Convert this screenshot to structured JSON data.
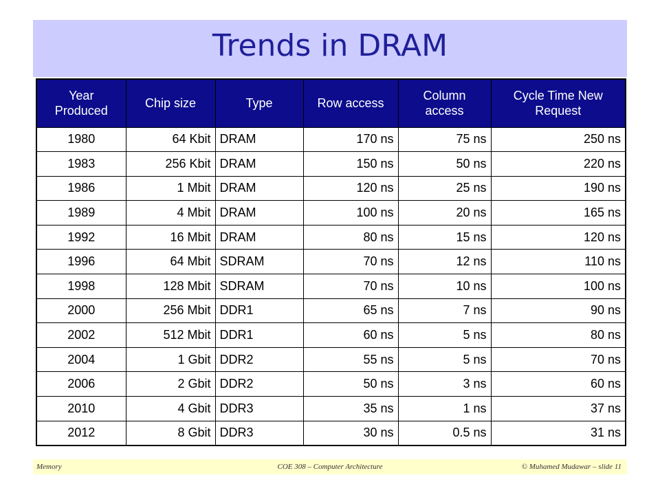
{
  "slide": {
    "title": "Trends in DRAM"
  },
  "table": {
    "headers": [
      "Year Produced",
      "Chip size",
      "Type",
      "Row access",
      "Column access",
      "Cycle Time New Request"
    ],
    "rows": [
      [
        "1980",
        "64 Kbit",
        "DRAM",
        "170 ns",
        "75 ns",
        "250 ns"
      ],
      [
        "1983",
        "256 Kbit",
        "DRAM",
        "150 ns",
        "50 ns",
        "220 ns"
      ],
      [
        "1986",
        "1 Mbit",
        "DRAM",
        "120 ns",
        "25 ns",
        "190 ns"
      ],
      [
        "1989",
        "4 Mbit",
        "DRAM",
        "100 ns",
        "20 ns",
        "165 ns"
      ],
      [
        "1992",
        "16 Mbit",
        "DRAM",
        "80 ns",
        "15 ns",
        "120 ns"
      ],
      [
        "1996",
        "64 Mbit",
        "SDRAM",
        "70 ns",
        "12 ns",
        "110 ns"
      ],
      [
        "1998",
        "128 Mbit",
        "SDRAM",
        "70 ns",
        "10 ns",
        "100 ns"
      ],
      [
        "2000",
        "256 Mbit",
        "DDR1",
        "65 ns",
        "7 ns",
        "90 ns"
      ],
      [
        "2002",
        "512 Mbit",
        "DDR1",
        "60 ns",
        "5 ns",
        "80 ns"
      ],
      [
        "2004",
        "1 Gbit",
        "DDR2",
        "55 ns",
        "5 ns",
        "70 ns"
      ],
      [
        "2006",
        "2 Gbit",
        "DDR2",
        "50 ns",
        "3 ns",
        "60 ns"
      ],
      [
        "2010",
        "4 Gbit",
        "DDR3",
        "35 ns",
        "1 ns",
        "37 ns"
      ],
      [
        "2012",
        "8 Gbit",
        "DDR3",
        "30 ns",
        "0.5 ns",
        "31 ns"
      ]
    ]
  },
  "footer": {
    "left": "Memory",
    "center": "COE 308 – Computer Architecture",
    "right": "© Muhamed Mudawar – slide 11"
  },
  "colors": {
    "title_bar": "#ccccff",
    "title_text": "#1f1f99",
    "header_bg": "#0c0c8c",
    "footer_bg": "#ffffcc"
  }
}
